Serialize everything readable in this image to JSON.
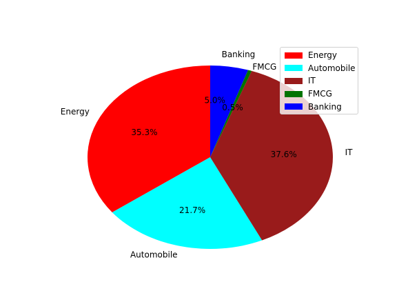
{
  "chart_data": {
    "type": "pie",
    "categories": [
      "Energy",
      "Automobile",
      "IT",
      "FMCG",
      "Banking"
    ],
    "values": [
      35.3,
      21.7,
      37.6,
      0.5,
      5.0
    ],
    "percent_labels": [
      "35.3%",
      "21.7%",
      "37.6%",
      "0.5%",
      "5.0%"
    ],
    "colors": [
      "#ff0000",
      "#00ffff",
      "#991b1b",
      "#007300",
      "#0000ff"
    ],
    "start_angle_deg": 90,
    "direction": "counterclockwise",
    "legend": {
      "position": "top-right",
      "entries": [
        "Energy",
        "Automobile",
        "IT",
        "FMCG",
        "Banking"
      ]
    }
  }
}
